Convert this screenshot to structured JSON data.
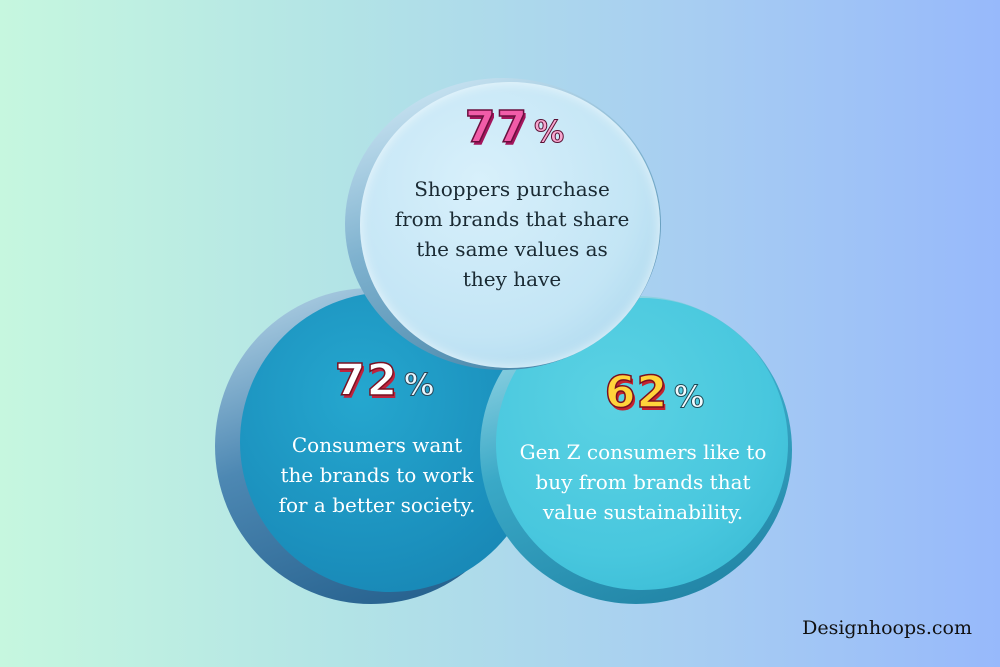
{
  "circles": {
    "top": {
      "percent_number": "77",
      "percent_sign": "%",
      "lines": [
        "Shoppers purchase",
        "from brands that share",
        "the same values as",
        "they have"
      ],
      "color": "#c3e5f5"
    },
    "left": {
      "percent_number": "72",
      "percent_sign": "%",
      "lines": [
        "Consumers want",
        "the brands to work",
        "for a better society."
      ],
      "color": "#1b90bd"
    },
    "right": {
      "percent_number": "62",
      "percent_sign": "%",
      "lines": [
        "Gen Z consumers like to",
        "buy from brands that",
        "value sustainability."
      ],
      "color": "#48c7de"
    }
  },
  "footer": {
    "credit": "Designhoops.com"
  }
}
